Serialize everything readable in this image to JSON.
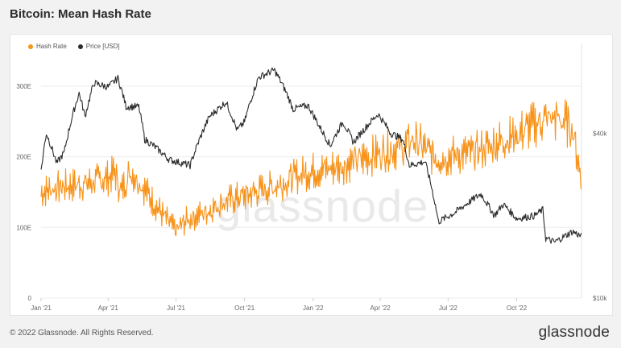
{
  "title": "Bitcoin: Mean Hash Rate",
  "footer": {
    "copyright": "© 2022 Glassnode. All Rights Reserved.",
    "brand": "glassnode"
  },
  "watermark": "glassnode",
  "colors": {
    "hash_rate": "#f7931a",
    "price": "#2b2b2b",
    "grid": "#ececec",
    "axis_text": "#666666"
  },
  "chart_data": {
    "type": "line",
    "title": "Bitcoin: Mean Hash Rate",
    "legend": [
      "Hash Rate",
      "Price [USD]"
    ],
    "legend_position": "top-left",
    "grid": true,
    "x_ticks": [
      "Jan '21",
      "Apr '21",
      "Jul '21",
      "Oct '21",
      "Jan '22",
      "Apr '22",
      "Jul '22",
      "Oct '22"
    ],
    "x_range": [
      "2021-01-01",
      "2022-12-27"
    ],
    "y_left": {
      "ticks": [
        "0",
        "100E",
        "200E",
        "300E"
      ],
      "range": [
        0,
        350
      ]
    },
    "y_right": {
      "ticks": [
        "$10k",
        "$40k"
      ],
      "scale": "log",
      "range": [
        10000,
        80000
      ]
    },
    "series": [
      {
        "name": "Hash Rate",
        "axis": "left",
        "unit": "EH/s",
        "x": [
          "2021-01-01",
          "2021-01-15",
          "2021-02-01",
          "2021-02-15",
          "2021-03-01",
          "2021-03-15",
          "2021-04-01",
          "2021-04-10",
          "2021-04-18",
          "2021-05-01",
          "2021-05-15",
          "2021-06-01",
          "2021-06-15",
          "2021-07-01",
          "2021-07-15",
          "2021-08-01",
          "2021-08-15",
          "2021-09-01",
          "2021-09-15",
          "2021-10-01",
          "2021-10-15",
          "2021-11-01",
          "2021-11-15",
          "2021-12-01",
          "2021-12-15",
          "2022-01-01",
          "2022-01-15",
          "2022-02-01",
          "2022-02-15",
          "2022-03-01",
          "2022-03-15",
          "2022-04-01",
          "2022-04-15",
          "2022-05-01",
          "2022-05-15",
          "2022-06-01",
          "2022-06-15",
          "2022-07-01",
          "2022-07-15",
          "2022-08-01",
          "2022-08-15",
          "2022-09-01",
          "2022-09-15",
          "2022-10-01",
          "2022-10-15",
          "2022-11-01",
          "2022-11-15",
          "2022-12-01",
          "2022-12-15",
          "2022-12-27"
        ],
        "values": [
          150,
          155,
          158,
          160,
          162,
          165,
          170,
          178,
          150,
          180,
          162,
          135,
          115,
          95,
          110,
          118,
          125,
          135,
          140,
          145,
          150,
          155,
          160,
          168,
          175,
          180,
          182,
          185,
          190,
          195,
          200,
          205,
          210,
          212,
          225,
          210,
          198,
          200,
          203,
          205,
          210,
          218,
          225,
          230,
          240,
          250,
          255,
          252,
          240,
          165
        ]
      },
      {
        "name": "Price [USD]",
        "axis": "right",
        "unit": "USD",
        "x": [
          "2021-01-01",
          "2021-01-08",
          "2021-01-22",
          "2021-02-01",
          "2021-02-21",
          "2021-03-01",
          "2021-03-13",
          "2021-04-01",
          "2021-04-14",
          "2021-04-25",
          "2021-05-12",
          "2021-05-20",
          "2021-06-01",
          "2021-06-22",
          "2021-07-20",
          "2021-08-15",
          "2021-09-06",
          "2021-09-21",
          "2021-10-01",
          "2021-10-20",
          "2021-11-10",
          "2021-11-25",
          "2021-12-05",
          "2021-12-25",
          "2022-01-10",
          "2022-01-24",
          "2022-02-10",
          "2022-02-24",
          "2022-03-29",
          "2022-04-15",
          "2022-05-01",
          "2022-05-10",
          "2022-05-31",
          "2022-06-13",
          "2022-06-18",
          "2022-07-10",
          "2022-08-14",
          "2022-09-01",
          "2022-09-13",
          "2022-10-01",
          "2022-10-25",
          "2022-11-05",
          "2022-11-09",
          "2022-11-21",
          "2022-12-15",
          "2022-12-27"
        ],
        "values": [
          29000,
          40000,
          31000,
          34000,
          56000,
          46000,
          61000,
          59000,
          63500,
          50000,
          50000,
          38000,
          36000,
          32000,
          30500,
          46000,
          52000,
          41000,
          44000,
          64000,
          68000,
          57000,
          49000,
          50500,
          42000,
          36000,
          44000,
          37000,
          47000,
          40000,
          38000,
          30500,
          31500,
          22500,
          19000,
          20500,
          24000,
          20000,
          22000,
          19500,
          20000,
          21000,
          16500,
          16000,
          17500,
          16800
        ]
      }
    ]
  }
}
